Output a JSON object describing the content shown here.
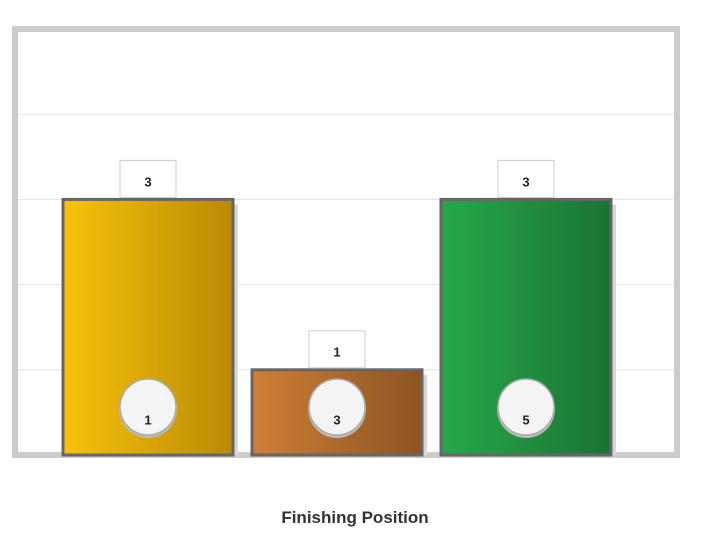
{
  "chart_data": {
    "type": "bar",
    "xlabel": "Finishing Position",
    "ylim": [
      0,
      5
    ],
    "grid": true,
    "categories": [
      "1",
      "3",
      "5"
    ],
    "values": [
      3,
      1,
      3
    ],
    "colors": {
      "1": {
        "start": "#f8c20a",
        "end": "#b98a06"
      },
      "3": {
        "start": "#cf7f34",
        "end": "#8c5423"
      },
      "5": {
        "start": "#27a84a",
        "end": "#1a7333"
      }
    },
    "frame_color": "#cccccc",
    "bar_border_color": "#666666"
  }
}
